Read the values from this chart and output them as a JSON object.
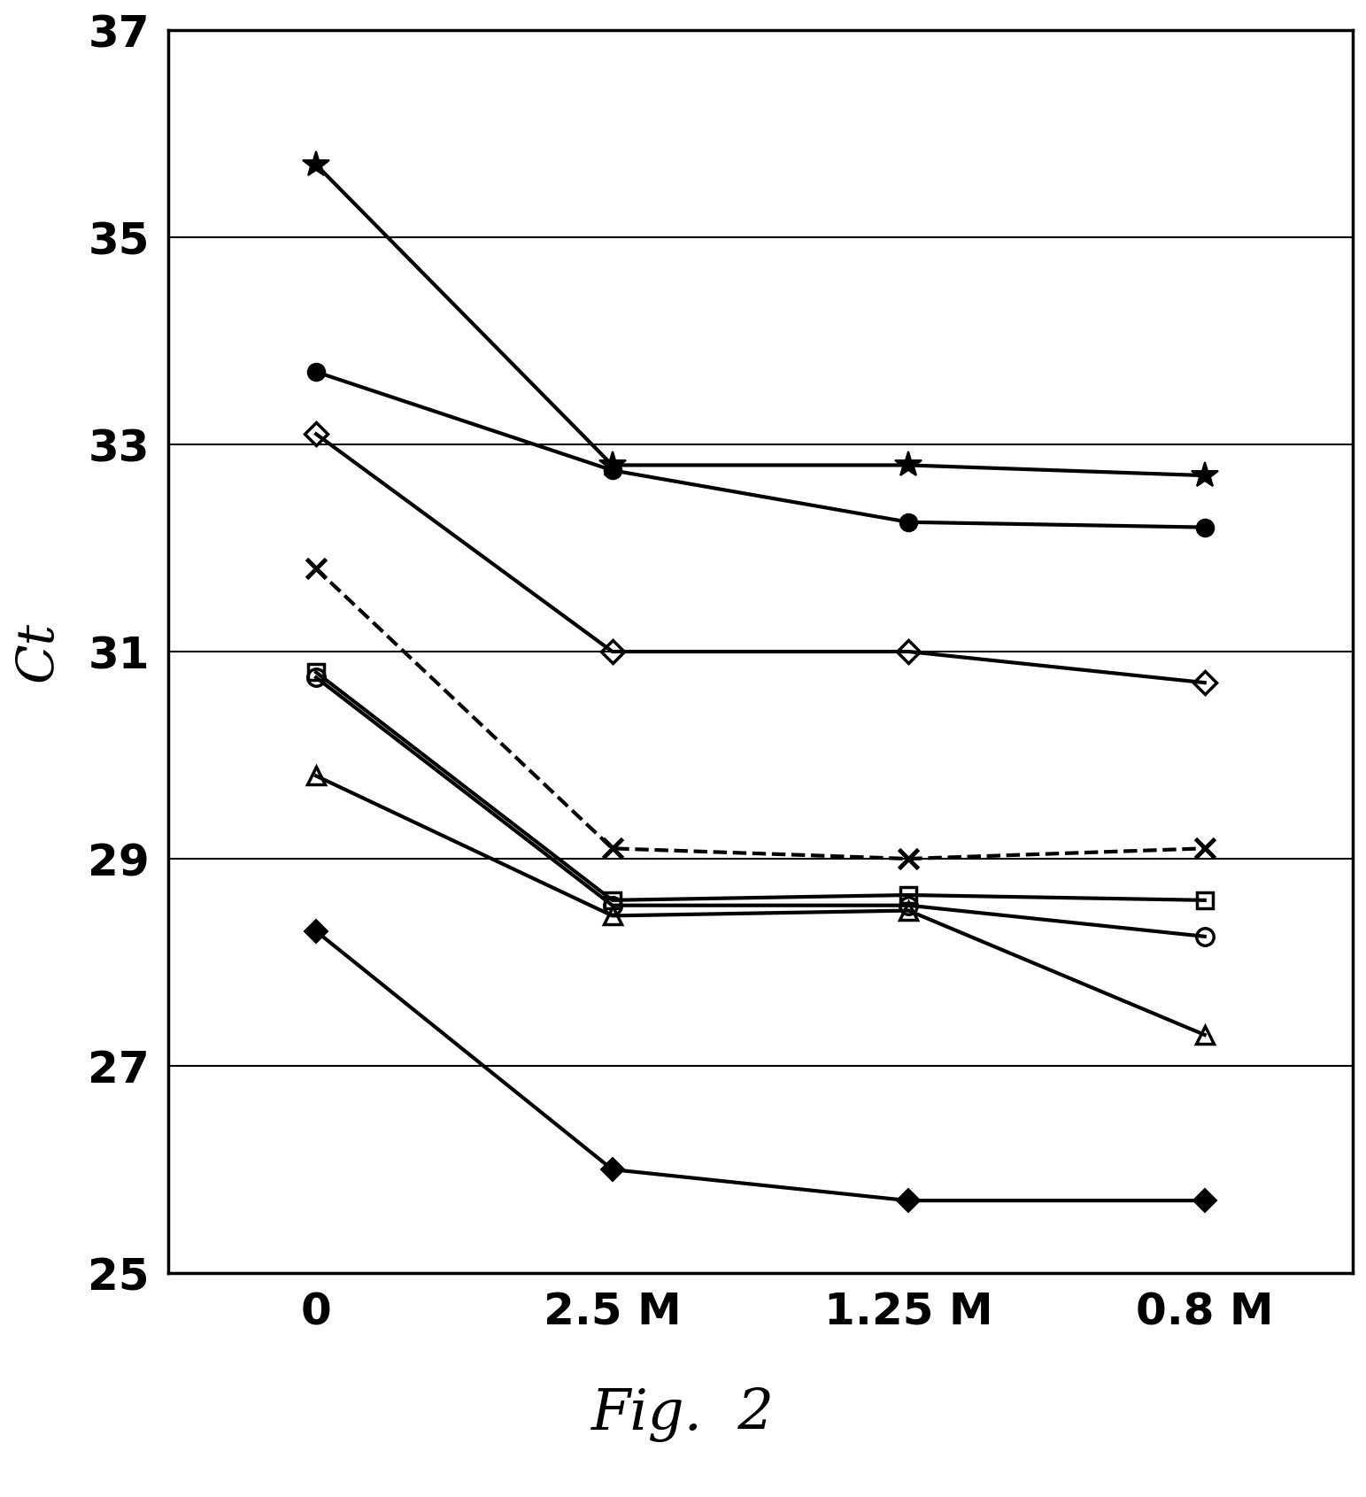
{
  "x_positions": [
    0,
    1,
    2,
    3
  ],
  "x_labels": [
    "0",
    "2.5 M",
    "1.25 M",
    "0.8 M"
  ],
  "ylabel": "Ct",
  "ylim": [
    25,
    37
  ],
  "yticks": [
    25,
    27,
    29,
    31,
    33,
    35,
    37
  ],
  "caption": "Fig.  2",
  "series": [
    {
      "name": "asterisk_solid",
      "y": [
        35.7,
        32.8,
        32.8,
        32.7
      ],
      "marker": "*",
      "markersize": 22,
      "linestyle": "-",
      "linewidth": 3.0,
      "fillstyle": "full",
      "zorder": 5,
      "markeredgewidth": 1.5
    },
    {
      "name": "filled_circle",
      "y": [
        33.7,
        32.75,
        32.25,
        32.2
      ],
      "marker": "o",
      "markersize": 14,
      "linestyle": "-",
      "linewidth": 3.0,
      "fillstyle": "full",
      "zorder": 5,
      "markeredgewidth": 1.5
    },
    {
      "name": "open_diamond",
      "y": [
        33.1,
        31.0,
        31.0,
        30.7
      ],
      "marker": "D",
      "markersize": 13,
      "linestyle": "-",
      "linewidth": 3.0,
      "fillstyle": "none",
      "zorder": 5,
      "markeredgewidth": 2.5
    },
    {
      "name": "x_dashed",
      "y": [
        31.8,
        29.1,
        29.0,
        29.1
      ],
      "marker": "x",
      "markersize": 16,
      "linestyle": "--",
      "linewidth": 3.0,
      "fillstyle": "full",
      "zorder": 5,
      "markeredgewidth": 3.5
    },
    {
      "name": "open_square",
      "y": [
        30.8,
        28.6,
        28.65,
        28.6
      ],
      "marker": "s",
      "markersize": 13,
      "linestyle": "-",
      "linewidth": 3.0,
      "fillstyle": "none",
      "zorder": 5,
      "markeredgewidth": 2.5
    },
    {
      "name": "open_circle",
      "y": [
        30.75,
        28.55,
        28.55,
        28.25
      ],
      "marker": "o",
      "markersize": 14,
      "linestyle": "-",
      "linewidth": 3.0,
      "fillstyle": "none",
      "zorder": 5,
      "markeredgewidth": 2.5
    },
    {
      "name": "open_triangle",
      "y": [
        29.8,
        28.45,
        28.5,
        27.3
      ],
      "marker": "^",
      "markersize": 14,
      "linestyle": "-",
      "linewidth": 3.0,
      "fillstyle": "none",
      "zorder": 5,
      "markeredgewidth": 2.5
    },
    {
      "name": "filled_diamond",
      "y": [
        28.3,
        26.0,
        25.7,
        25.7
      ],
      "marker": "D",
      "markersize": 13,
      "linestyle": "-",
      "linewidth": 3.0,
      "fillstyle": "full",
      "zorder": 5,
      "markeredgewidth": 1.5
    }
  ],
  "background_color": "white",
  "plot_background": "white",
  "grid_color": "black",
  "grid_linewidth": 1.5,
  "fig_width": 15.43,
  "fig_height": 16.91,
  "dpi": 100
}
